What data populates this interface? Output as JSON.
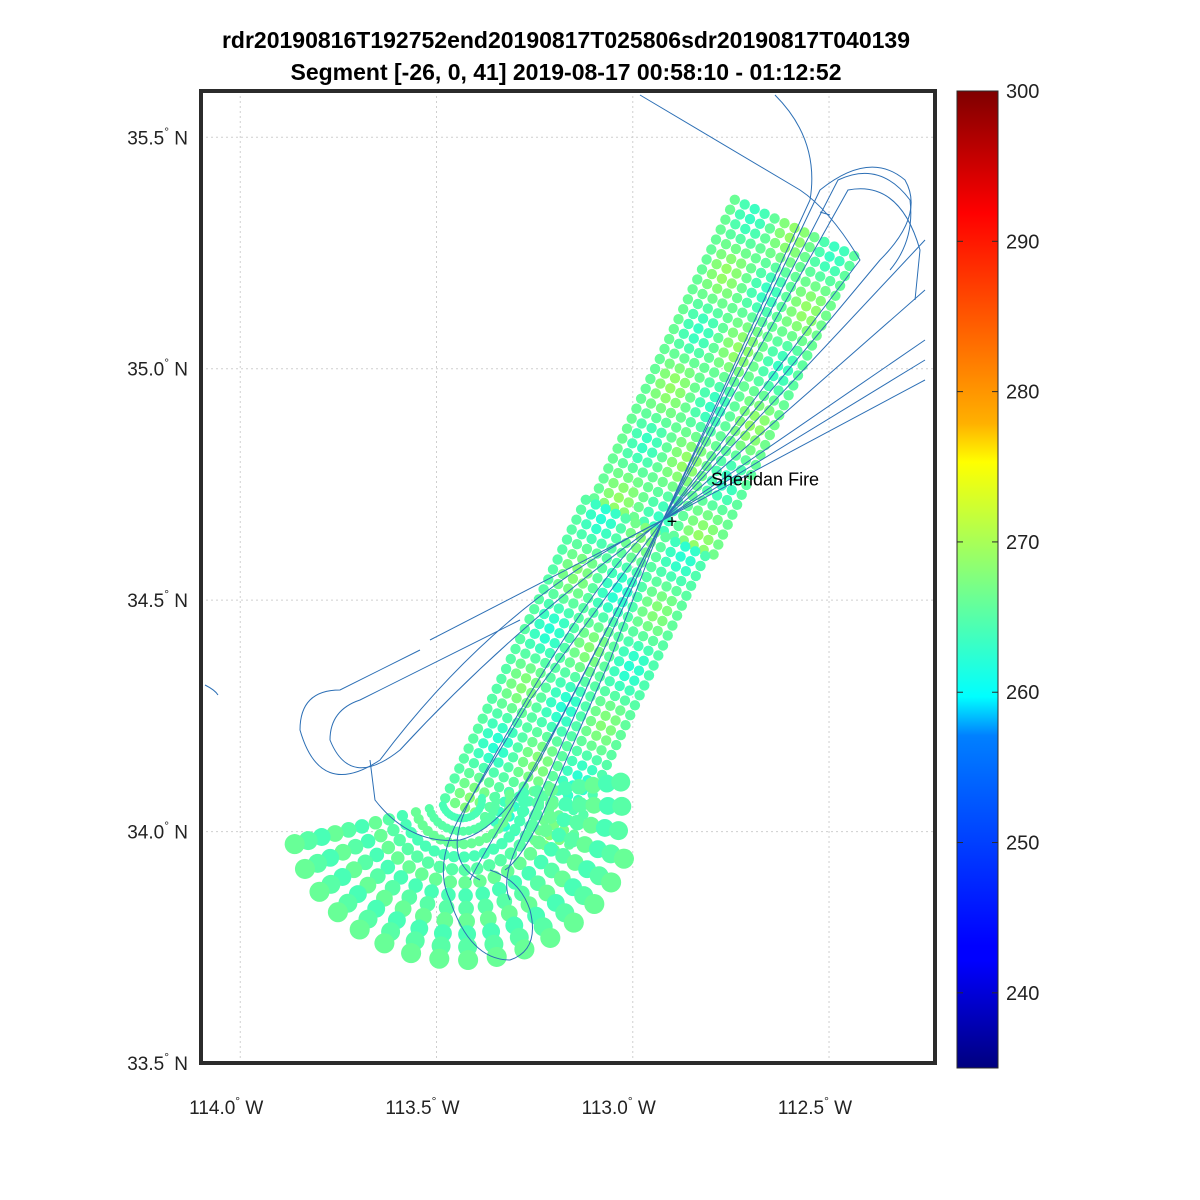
{
  "figure": {
    "title_line1": "rdr20190816T192752end20190817T025806sdr20190817T040139",
    "title_line2": "Segment [-26, 0, 41] 2019-08-17 00:58:10 - 01:12:52"
  },
  "map": {
    "lon_range": [
      -114.1,
      -112.23
    ],
    "lat_range": [
      33.5,
      35.6
    ],
    "lon_ticks": [
      {
        "value": -114.0,
        "label": "114.0",
        "hemi": "W"
      },
      {
        "value": -113.5,
        "label": "113.5",
        "hemi": "W"
      },
      {
        "value": -113.0,
        "label": "113.0",
        "hemi": "W"
      },
      {
        "value": -112.5,
        "label": "112.5",
        "hemi": "W"
      }
    ],
    "lat_ticks": [
      {
        "value": 33.5,
        "label": "33.5",
        "hemi": "N"
      },
      {
        "value": 34.0,
        "label": "34.0",
        "hemi": "N"
      },
      {
        "value": 34.5,
        "label": "34.5",
        "hemi": "N"
      },
      {
        "value": 35.0,
        "label": "35.0",
        "hemi": "N"
      },
      {
        "value": 35.5,
        "label": "35.5",
        "hemi": "N"
      }
    ],
    "degree_symbol": "°",
    "grid": true,
    "track_color": "#2c6fb5",
    "swath_value_typical": 266
  },
  "annotation": {
    "label": "Sheridan Fire",
    "marker": "+",
    "lon": -112.9,
    "lat": 34.67
  },
  "colorbar": {
    "min": 235,
    "max": 300,
    "ticks": [
      {
        "value": 240,
        "label": "240"
      },
      {
        "value": 250,
        "label": "250"
      },
      {
        "value": 260,
        "label": "260"
      },
      {
        "value": 270,
        "label": "270"
      },
      {
        "value": 280,
        "label": "280"
      },
      {
        "value": 290,
        "label": "290"
      },
      {
        "value": 300,
        "label": "300"
      }
    ],
    "colormap": "jet"
  }
}
